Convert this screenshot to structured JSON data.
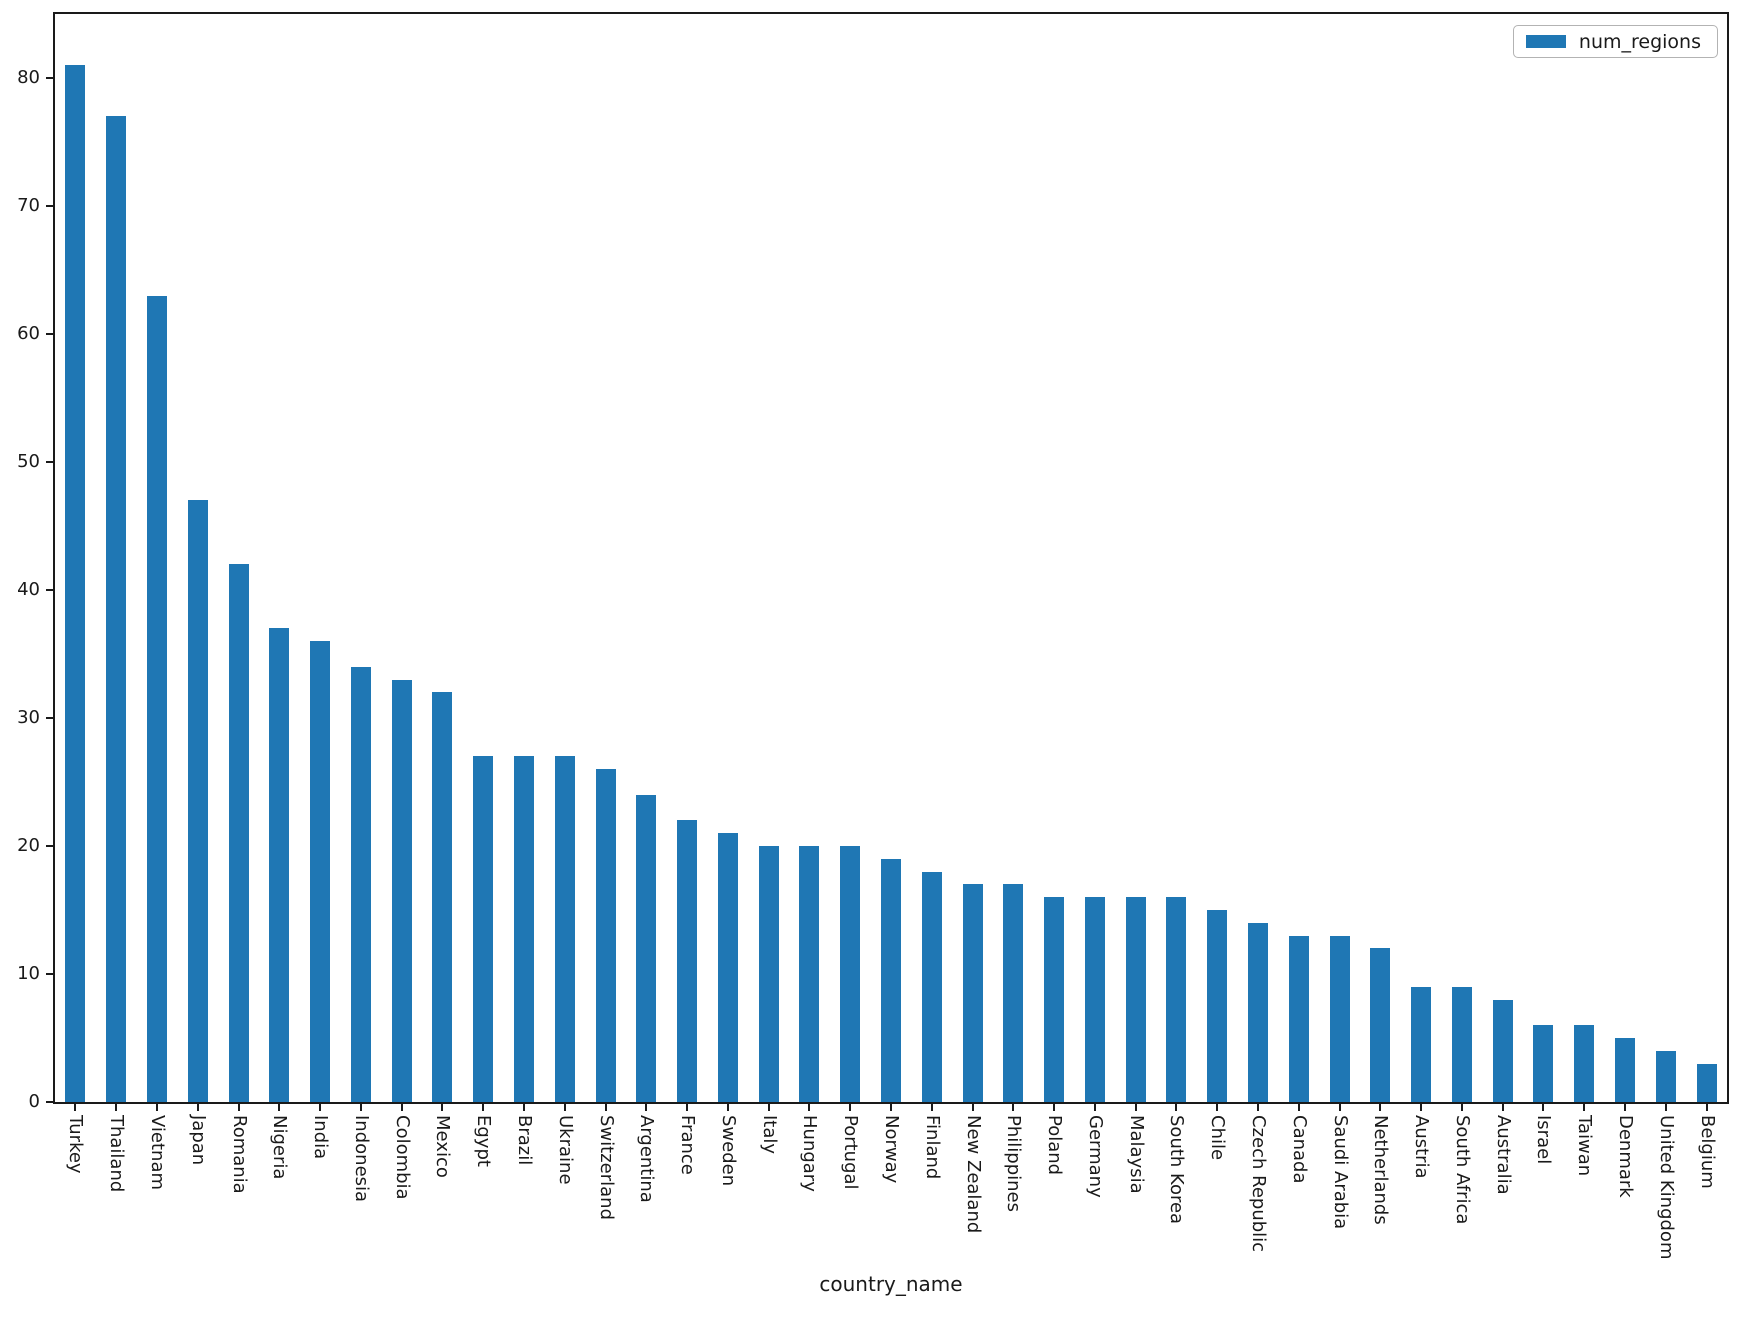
{
  "chart_data": {
    "type": "bar",
    "title": "",
    "xlabel": "country_name",
    "ylabel": "",
    "grid": false,
    "legend_position": "upper right",
    "yticks": [
      0,
      10,
      20,
      30,
      40,
      50,
      60,
      70,
      80
    ],
    "ylim": [
      0,
      85
    ],
    "categories": [
      "Turkey",
      "Thailand",
      "Vietnam",
      "Japan",
      "Romania",
      "Nigeria",
      "India",
      "Indonesia",
      "Colombia",
      "Mexico",
      "Egypt",
      "Brazil",
      "Ukraine",
      "Switzerland",
      "Argentina",
      "France",
      "Sweden",
      "Italy",
      "Hungary",
      "Portugal",
      "Norway",
      "Finland",
      "New Zealand",
      "Philippines",
      "Poland",
      "Germany",
      "Malaysia",
      "South Korea",
      "Chile",
      "Czech Republic",
      "Canada",
      "Saudi Arabia",
      "Netherlands",
      "Austria",
      "South Africa",
      "Australia",
      "Israel",
      "Taiwan",
      "Denmark",
      "United Kingdom",
      "Belgium"
    ],
    "series": [
      {
        "name": "num_regions",
        "color": "#1f77b4",
        "values": [
          81,
          77,
          63,
          47,
          42,
          37,
          36,
          34,
          33,
          32,
          27,
          27,
          27,
          26,
          24,
          22,
          21,
          20,
          20,
          20,
          19,
          18,
          17,
          17,
          16,
          16,
          16,
          16,
          15,
          14,
          13,
          13,
          12,
          9,
          9,
          8,
          6,
          6,
          5,
          4,
          3
        ]
      }
    ]
  },
  "colors": {
    "bar": "#1f77b4",
    "text": "#1a1a1a",
    "spine": "#1a1a1a",
    "legend_border": "#b3b3b3",
    "background": "#ffffff"
  }
}
